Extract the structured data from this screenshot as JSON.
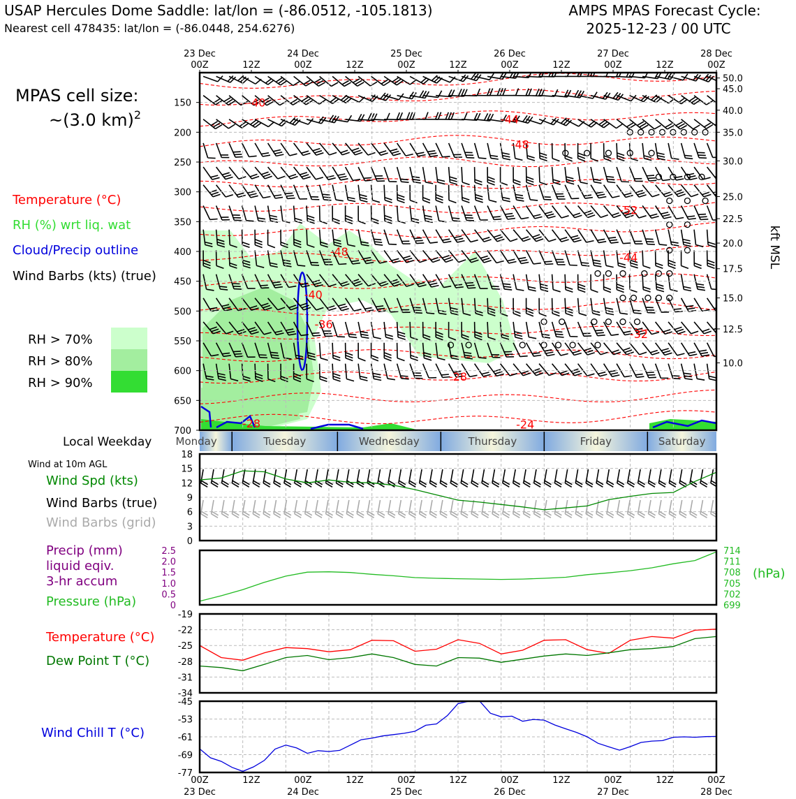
{
  "header": {
    "title_left": "USAP Hercules Dome Saddle: lat/lon = (-86.0512, -105.1813)",
    "subtitle_left": "Nearest cell 478435: lat/lon = (-86.0448, 254.6276)",
    "title_right_1": "AMPS MPAS Forecast Cycle:",
    "title_right_2": "2025-12-23 / 00 UTC"
  },
  "left_panel": {
    "cell_size_1": "MPAS cell size:",
    "cell_size_2": "~(3.0 km)",
    "cell_size_sup": "2",
    "legend_temp": "Temperature (°C)",
    "legend_rh": "RH (%) wrt liq. wat",
    "legend_cloud": "Cloud/Precip outline",
    "legend_wind": "Wind Barbs (kts) (true)",
    "rh_70": "RH > 70%",
    "rh_80": "RH > 80%",
    "rh_90": "RH > 90%",
    "weekday_label": "Local Weekday",
    "wind_10m": "Wind at 10m AGL",
    "wind_spd": "Wind Spd (kts)",
    "wind_barbs_true": "Wind Barbs (true)",
    "wind_barbs_grid": "Wind Barbs (grid)",
    "precip_1": "Precip (mm)",
    "precip_2": "liquid eqiv.",
    "precip_3": "3-hr accum",
    "pressure": "Pressure (hPa)",
    "temp2": "Temperature (°C)",
    "dewpoint": "Dew Point T (°C)",
    "windchill": "Wind Chill T (°C)"
  },
  "colors": {
    "temp": "#ff0000",
    "rh70": "#ccffcc",
    "rh80": "#a3ee9f",
    "rh90": "#33dd33",
    "cloud": "#0000dd",
    "wind": "#000000",
    "grid_barb": "#aaaaaa",
    "spd": "#008800",
    "precip": "#800080",
    "pressure": "#22bb22",
    "dew": "#007700",
    "chill": "#0000dd",
    "day_blue": "#80aae0",
    "day_yellow": "#f5f5dc"
  },
  "time_axis": {
    "top_ticks": [
      "00Z",
      "12Z",
      "00Z",
      "12Z",
      "00Z",
      "12Z",
      "00Z",
      "12Z",
      "00Z",
      "12Z",
      "00Z"
    ],
    "dates": [
      "23 Dec",
      "24 Dec",
      "25 Dec",
      "26 Dec",
      "27 Dec",
      "28 Dec"
    ]
  },
  "weekdays": [
    "Monday",
    "Tuesday",
    "Wednesday",
    "Thursday",
    "Friday",
    "Saturday"
  ],
  "chart_data": [
    {
      "type": "time-height",
      "title": "Upper-air cross section",
      "y_left_label": "Pressure (hPa)",
      "y_left_ticks": [
        150,
        200,
        250,
        300,
        350,
        400,
        450,
        500,
        550,
        600,
        650,
        700
      ],
      "ylim_hpa": [
        700,
        100
      ],
      "y_right_label": "kft MSL",
      "y_right_ticks": [
        {
          "label": "50.0",
          "p": 109
        },
        {
          "label": "45.0",
          "p": 127
        },
        {
          "label": "40.0",
          "p": 163
        },
        {
          "label": "35.0",
          "p": 200
        },
        {
          "label": "30.0",
          "p": 248
        },
        {
          "label": "25.0",
          "p": 308
        },
        {
          "label": "22.5",
          "p": 345
        },
        {
          "label": "20.0",
          "p": 386
        },
        {
          "label": "17.5",
          "p": 429
        },
        {
          "label": "15.0",
          "p": 478
        },
        {
          "label": "12.5",
          "p": 530
        },
        {
          "label": "10.0",
          "p": 587
        }
      ],
      "temperature_labels": [
        {
          "text": "-40",
          "t": 11,
          "p": 150
        },
        {
          "text": "-44",
          "t": 60,
          "p": 178
        },
        {
          "text": "-48",
          "t": 62,
          "p": 220
        },
        {
          "text": "-52",
          "t": 83,
          "p": 330
        },
        {
          "text": "-48",
          "t": 27,
          "p": 400
        },
        {
          "text": "-44",
          "t": 83,
          "p": 410
        },
        {
          "text": "-40",
          "t": 22,
          "p": 472
        },
        {
          "text": "-36",
          "t": 24,
          "p": 522
        },
        {
          "text": "-32",
          "t": 85,
          "p": 538
        },
        {
          "text": "-28",
          "t": 50,
          "p": 610
        },
        {
          "text": "-24",
          "t": 63,
          "p": 690
        },
        {
          "text": "-28",
          "t": 10,
          "p": 688
        }
      ],
      "isotherm_levels_hpa": [
        118,
        145,
        180,
        220,
        255,
        290,
        330,
        370,
        410,
        455,
        500,
        540,
        578,
        615,
        650,
        685
      ]
    },
    {
      "type": "line",
      "title": "Wind at 10m AGL",
      "ylim": [
        0,
        18
      ],
      "y_ticks": [
        0,
        3,
        6,
        9,
        12,
        15,
        18
      ],
      "x_hours": [
        0,
        6,
        12,
        18,
        24,
        30,
        36,
        42,
        48,
        54,
        60,
        66,
        72,
        78,
        84,
        90,
        96,
        102,
        108,
        114,
        120,
        126,
        132,
        138,
        144
      ],
      "series": [
        {
          "name": "Wind Spd (kts)",
          "values": [
            12.6,
            13.0,
            14.5,
            14.3,
            12.8,
            12.0,
            12.6,
            12.1,
            12.0,
            11.5,
            10.6,
            9.5,
            8.4,
            8.0,
            7.5,
            7.0,
            6.4,
            6.8,
            7.2,
            8.5,
            9.2,
            9.8,
            10.0,
            12.3,
            14.2
          ]
        }
      ]
    },
    {
      "type": "line",
      "title": "Precip and Pressure",
      "y_left_ticks": [
        "0",
        "0.5",
        "1.0",
        "1.5",
        "2.0",
        "2.5"
      ],
      "ylim_precip": [
        0,
        2.5
      ],
      "y_right_ticks": [
        "699",
        "702",
        "705",
        "708",
        "711",
        "714"
      ],
      "ylim_pressure": [
        699,
        714
      ],
      "x_hours": [
        0,
        6,
        12,
        18,
        24,
        30,
        36,
        42,
        48,
        54,
        60,
        66,
        72,
        78,
        84,
        90,
        96,
        102,
        108,
        114,
        120,
        126,
        132,
        138,
        144
      ],
      "series": [
        {
          "name": "Pressure (hPa)",
          "values": [
            700.0,
            701.5,
            703.2,
            705.2,
            706.9,
            708.0,
            708.1,
            707.9,
            707.4,
            707.0,
            706.5,
            706.3,
            706.2,
            706.1,
            706.0,
            706.1,
            706.3,
            706.6,
            707.3,
            707.8,
            708.4,
            709.2,
            710.3,
            711.2,
            713.6
          ]
        },
        {
          "name": "Precip (mm)",
          "values": [
            0,
            0,
            0,
            0,
            0,
            0,
            0,
            0,
            0,
            0,
            0,
            0,
            0,
            0,
            0,
            0,
            0,
            0,
            0,
            0,
            0,
            0,
            0,
            0,
            0
          ]
        }
      ]
    },
    {
      "type": "line",
      "title": "Temperature and Dew Point",
      "ylim": [
        -34,
        -19
      ],
      "y_ticks": [
        -34,
        -31,
        -28,
        -25,
        -22,
        -19
      ],
      "x_hours": [
        0,
        6,
        12,
        18,
        24,
        30,
        36,
        42,
        48,
        54,
        60,
        66,
        72,
        78,
        84,
        90,
        96,
        102,
        108,
        114,
        120,
        126,
        132,
        138,
        144
      ],
      "series": [
        {
          "name": "Temperature (°C)",
          "values": [
            -25.0,
            -27.3,
            -27.8,
            -26.4,
            -25.4,
            -25.6,
            -26.2,
            -25.8,
            -24.0,
            -24.1,
            -26.1,
            -25.7,
            -23.9,
            -24.6,
            -26.6,
            -25.9,
            -24.0,
            -23.9,
            -25.8,
            -26.5,
            -24.0,
            -23.3,
            -23.6,
            -22.1,
            -21.9
          ]
        },
        {
          "name": "Dew Point T (°C)",
          "values": [
            -28.9,
            -29.2,
            -29.8,
            -28.6,
            -27.3,
            -26.9,
            -27.7,
            -27.3,
            -26.6,
            -27.3,
            -28.6,
            -28.9,
            -27.3,
            -27.4,
            -28.2,
            -27.6,
            -27.0,
            -26.6,
            -26.9,
            -26.4,
            -25.8,
            -25.6,
            -25.2,
            -23.7,
            -23.3
          ]
        }
      ]
    },
    {
      "type": "line",
      "title": "Wind Chill",
      "ylim": [
        -77,
        -45
      ],
      "y_ticks": [
        -77,
        -69,
        -61,
        -53,
        -45
      ],
      "x_hours": [
        0,
        3,
        6,
        9,
        12,
        15,
        18,
        21,
        24,
        27,
        30,
        33,
        36,
        39,
        42,
        45,
        48,
        51,
        54,
        57,
        60,
        63,
        66,
        69,
        72,
        75,
        78,
        81,
        84,
        87,
        90,
        93,
        96,
        99,
        102,
        105,
        108,
        111,
        114,
        117,
        120,
        123,
        126,
        129,
        132,
        135,
        138,
        141,
        144
      ],
      "series": [
        {
          "name": "Wind Chill T (°C)",
          "values": [
            -66.4,
            -70.4,
            -72.0,
            -74.7,
            -76.5,
            -74.5,
            -71.6,
            -66.5,
            -64.7,
            -66.0,
            -68.4,
            -67.2,
            -67.6,
            -67.1,
            -64.7,
            -62.3,
            -61.6,
            -60.6,
            -60.0,
            -59.4,
            -58.5,
            -55.8,
            -55.2,
            -51.5,
            -46.1,
            -45.0,
            -44.9,
            -50.4,
            -52.0,
            -51.7,
            -54.0,
            -53.2,
            -53.5,
            -55.7,
            -57.4,
            -59.0,
            -61.0,
            -63.9,
            -65.5,
            -67.0,
            -65.4,
            -63.5,
            -62.9,
            -62.7,
            -61.2,
            -61.0,
            -61.2,
            -60.9,
            -60.8
          ]
        }
      ]
    }
  ]
}
